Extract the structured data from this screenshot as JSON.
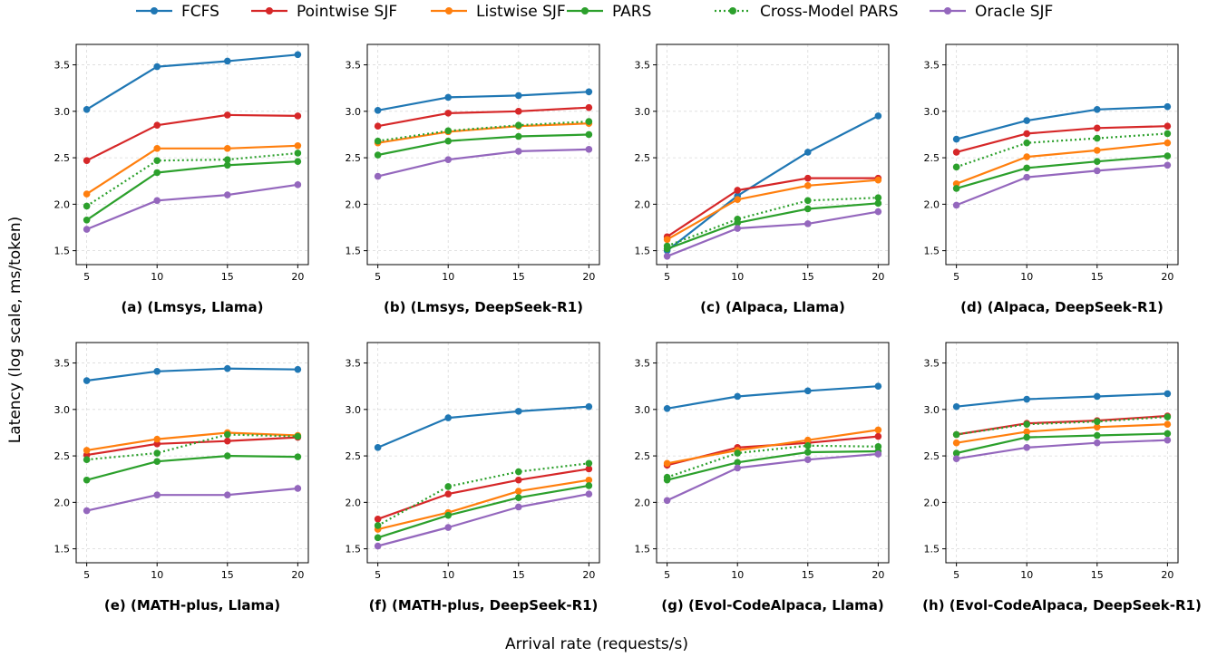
{
  "chart_data": {
    "type": "line",
    "ylabel": "Latency (log scale, ms/token)",
    "xlabel": "Arrival rate (requests/s)",
    "x": [
      5,
      10,
      15,
      20
    ],
    "ylim": [
      1.35,
      3.72
    ],
    "yticks": [
      "1.5",
      "2.0",
      "2.5",
      "3.0",
      "3.5"
    ],
    "ytick_values": [
      1.5,
      2.0,
      2.5,
      3.0,
      3.5
    ],
    "xticks": [
      "5",
      "10",
      "15",
      "20"
    ],
    "grid": true,
    "legend_position": "top-center",
    "series_styles": [
      {
        "name": "FCFS",
        "color": "#1f77b4",
        "dash": "solid"
      },
      {
        "name": "Pointwise SJF",
        "color": "#d62728",
        "dash": "solid"
      },
      {
        "name": "Listwise SJF",
        "color": "#ff7f0e",
        "dash": "solid"
      },
      {
        "name": "PARS",
        "color": "#2ca02c",
        "dash": "solid"
      },
      {
        "name": "Cross-Model PARS",
        "color": "#2ca02c",
        "dash": "dotted"
      },
      {
        "name": "Oracle SJF",
        "color": "#9467bd",
        "dash": "solid"
      }
    ],
    "panels": [
      {
        "title": "(a) (Lmsys, Llama)",
        "series": [
          {
            "name": "FCFS",
            "values": [
              3.02,
              3.48,
              3.54,
              3.61
            ]
          },
          {
            "name": "Pointwise SJF",
            "values": [
              2.47,
              2.85,
              2.96,
              2.95
            ]
          },
          {
            "name": "Listwise SJF",
            "values": [
              2.11,
              2.6,
              2.6,
              2.63
            ]
          },
          {
            "name": "PARS",
            "values": [
              1.83,
              2.34,
              2.42,
              2.46
            ]
          },
          {
            "name": "Cross-Model PARS",
            "values": [
              1.98,
              2.47,
              2.48,
              2.55
            ]
          },
          {
            "name": "Oracle SJF",
            "values": [
              1.73,
              2.04,
              2.1,
              2.21
            ]
          }
        ]
      },
      {
        "title": "(b) (Lmsys, DeepSeek-R1)",
        "series": [
          {
            "name": "FCFS",
            "values": [
              3.01,
              3.15,
              3.17,
              3.21
            ]
          },
          {
            "name": "Pointwise SJF",
            "values": [
              2.84,
              2.98,
              3.0,
              3.04
            ]
          },
          {
            "name": "Listwise SJF",
            "values": [
              2.66,
              2.78,
              2.84,
              2.87
            ]
          },
          {
            "name": "PARS",
            "values": [
              2.53,
              2.68,
              2.73,
              2.75
            ]
          },
          {
            "name": "Cross-Model PARS",
            "values": [
              2.68,
              2.79,
              2.85,
              2.89
            ]
          },
          {
            "name": "Oracle SJF",
            "values": [
              2.3,
              2.48,
              2.57,
              2.59
            ]
          }
        ]
      },
      {
        "title": "(c) (Alpaca, Llama)",
        "series": [
          {
            "name": "FCFS",
            "values": [
              1.5,
              2.09,
              2.56,
              2.95
            ]
          },
          {
            "name": "Pointwise SJF",
            "values": [
              1.65,
              2.15,
              2.28,
              2.28
            ]
          },
          {
            "name": "Listwise SJF",
            "values": [
              1.62,
              2.05,
              2.2,
              2.26
            ]
          },
          {
            "name": "PARS",
            "values": [
              1.52,
              1.8,
              1.95,
              2.01
            ]
          },
          {
            "name": "Cross-Model PARS",
            "values": [
              1.55,
              1.84,
              2.04,
              2.07
            ]
          },
          {
            "name": "Oracle SJF",
            "values": [
              1.44,
              1.74,
              1.79,
              1.92
            ]
          }
        ]
      },
      {
        "title": "(d) (Alpaca, DeepSeek-R1)",
        "series": [
          {
            "name": "FCFS",
            "values": [
              2.7,
              2.9,
              3.02,
              3.05
            ]
          },
          {
            "name": "Pointwise SJF",
            "values": [
              2.56,
              2.76,
              2.82,
              2.84
            ]
          },
          {
            "name": "Listwise SJF",
            "values": [
              2.22,
              2.51,
              2.58,
              2.66
            ]
          },
          {
            "name": "PARS",
            "values": [
              2.17,
              2.39,
              2.46,
              2.52
            ]
          },
          {
            "name": "Cross-Model PARS",
            "values": [
              2.4,
              2.66,
              2.71,
              2.76
            ]
          },
          {
            "name": "Oracle SJF",
            "values": [
              1.99,
              2.29,
              2.36,
              2.42
            ]
          }
        ]
      },
      {
        "title": "(e) (MATH-plus, Llama)",
        "series": [
          {
            "name": "FCFS",
            "values": [
              3.31,
              3.41,
              3.44,
              3.43
            ]
          },
          {
            "name": "Pointwise SJF",
            "values": [
              2.51,
              2.63,
              2.66,
              2.7
            ]
          },
          {
            "name": "Listwise SJF",
            "values": [
              2.56,
              2.68,
              2.75,
              2.72
            ]
          },
          {
            "name": "PARS",
            "values": [
              2.24,
              2.44,
              2.5,
              2.49
            ]
          },
          {
            "name": "Cross-Model PARS",
            "values": [
              2.46,
              2.53,
              2.73,
              2.71
            ]
          },
          {
            "name": "Oracle SJF",
            "values": [
              1.91,
              2.08,
              2.08,
              2.15
            ]
          }
        ]
      },
      {
        "title": "(f) (MATH-plus, DeepSeek-R1)",
        "series": [
          {
            "name": "FCFS",
            "values": [
              2.59,
              2.91,
              2.98,
              3.03
            ]
          },
          {
            "name": "Pointwise SJF",
            "values": [
              1.82,
              2.09,
              2.24,
              2.36
            ]
          },
          {
            "name": "Listwise SJF",
            "values": [
              1.71,
              1.89,
              2.12,
              2.24
            ]
          },
          {
            "name": "PARS",
            "values": [
              1.62,
              1.86,
              2.05,
              2.18
            ]
          },
          {
            "name": "Cross-Model PARS",
            "values": [
              1.75,
              2.17,
              2.33,
              2.42
            ]
          },
          {
            "name": "Oracle SJF",
            "values": [
              1.53,
              1.73,
              1.95,
              2.09
            ]
          }
        ]
      },
      {
        "title": "(g) (Evol-CodeAlpaca, Llama)",
        "series": [
          {
            "name": "FCFS",
            "values": [
              3.01,
              3.14,
              3.2,
              3.25
            ]
          },
          {
            "name": "Pointwise SJF",
            "values": [
              2.4,
              2.59,
              2.64,
              2.71
            ]
          },
          {
            "name": "Listwise SJF",
            "values": [
              2.42,
              2.56,
              2.67,
              2.78
            ]
          },
          {
            "name": "PARS",
            "values": [
              2.24,
              2.43,
              2.54,
              2.55
            ]
          },
          {
            "name": "Cross-Model PARS",
            "values": [
              2.27,
              2.53,
              2.61,
              2.6
            ]
          },
          {
            "name": "Oracle SJF",
            "values": [
              2.02,
              2.37,
              2.46,
              2.52
            ]
          }
        ]
      },
      {
        "title": "(h) (Evol-CodeAlpaca, DeepSeek-R1)",
        "series": [
          {
            "name": "FCFS",
            "values": [
              3.03,
              3.11,
              3.14,
              3.17
            ]
          },
          {
            "name": "Pointwise SJF",
            "values": [
              2.73,
              2.85,
              2.88,
              2.93
            ]
          },
          {
            "name": "Listwise SJF",
            "values": [
              2.64,
              2.76,
              2.81,
              2.84
            ]
          },
          {
            "name": "PARS",
            "values": [
              2.53,
              2.7,
              2.72,
              2.74
            ]
          },
          {
            "name": "Cross-Model PARS",
            "values": [
              2.73,
              2.84,
              2.87,
              2.92
            ]
          },
          {
            "name": "Oracle SJF",
            "values": [
              2.47,
              2.59,
              2.64,
              2.67
            ]
          }
        ]
      }
    ]
  }
}
